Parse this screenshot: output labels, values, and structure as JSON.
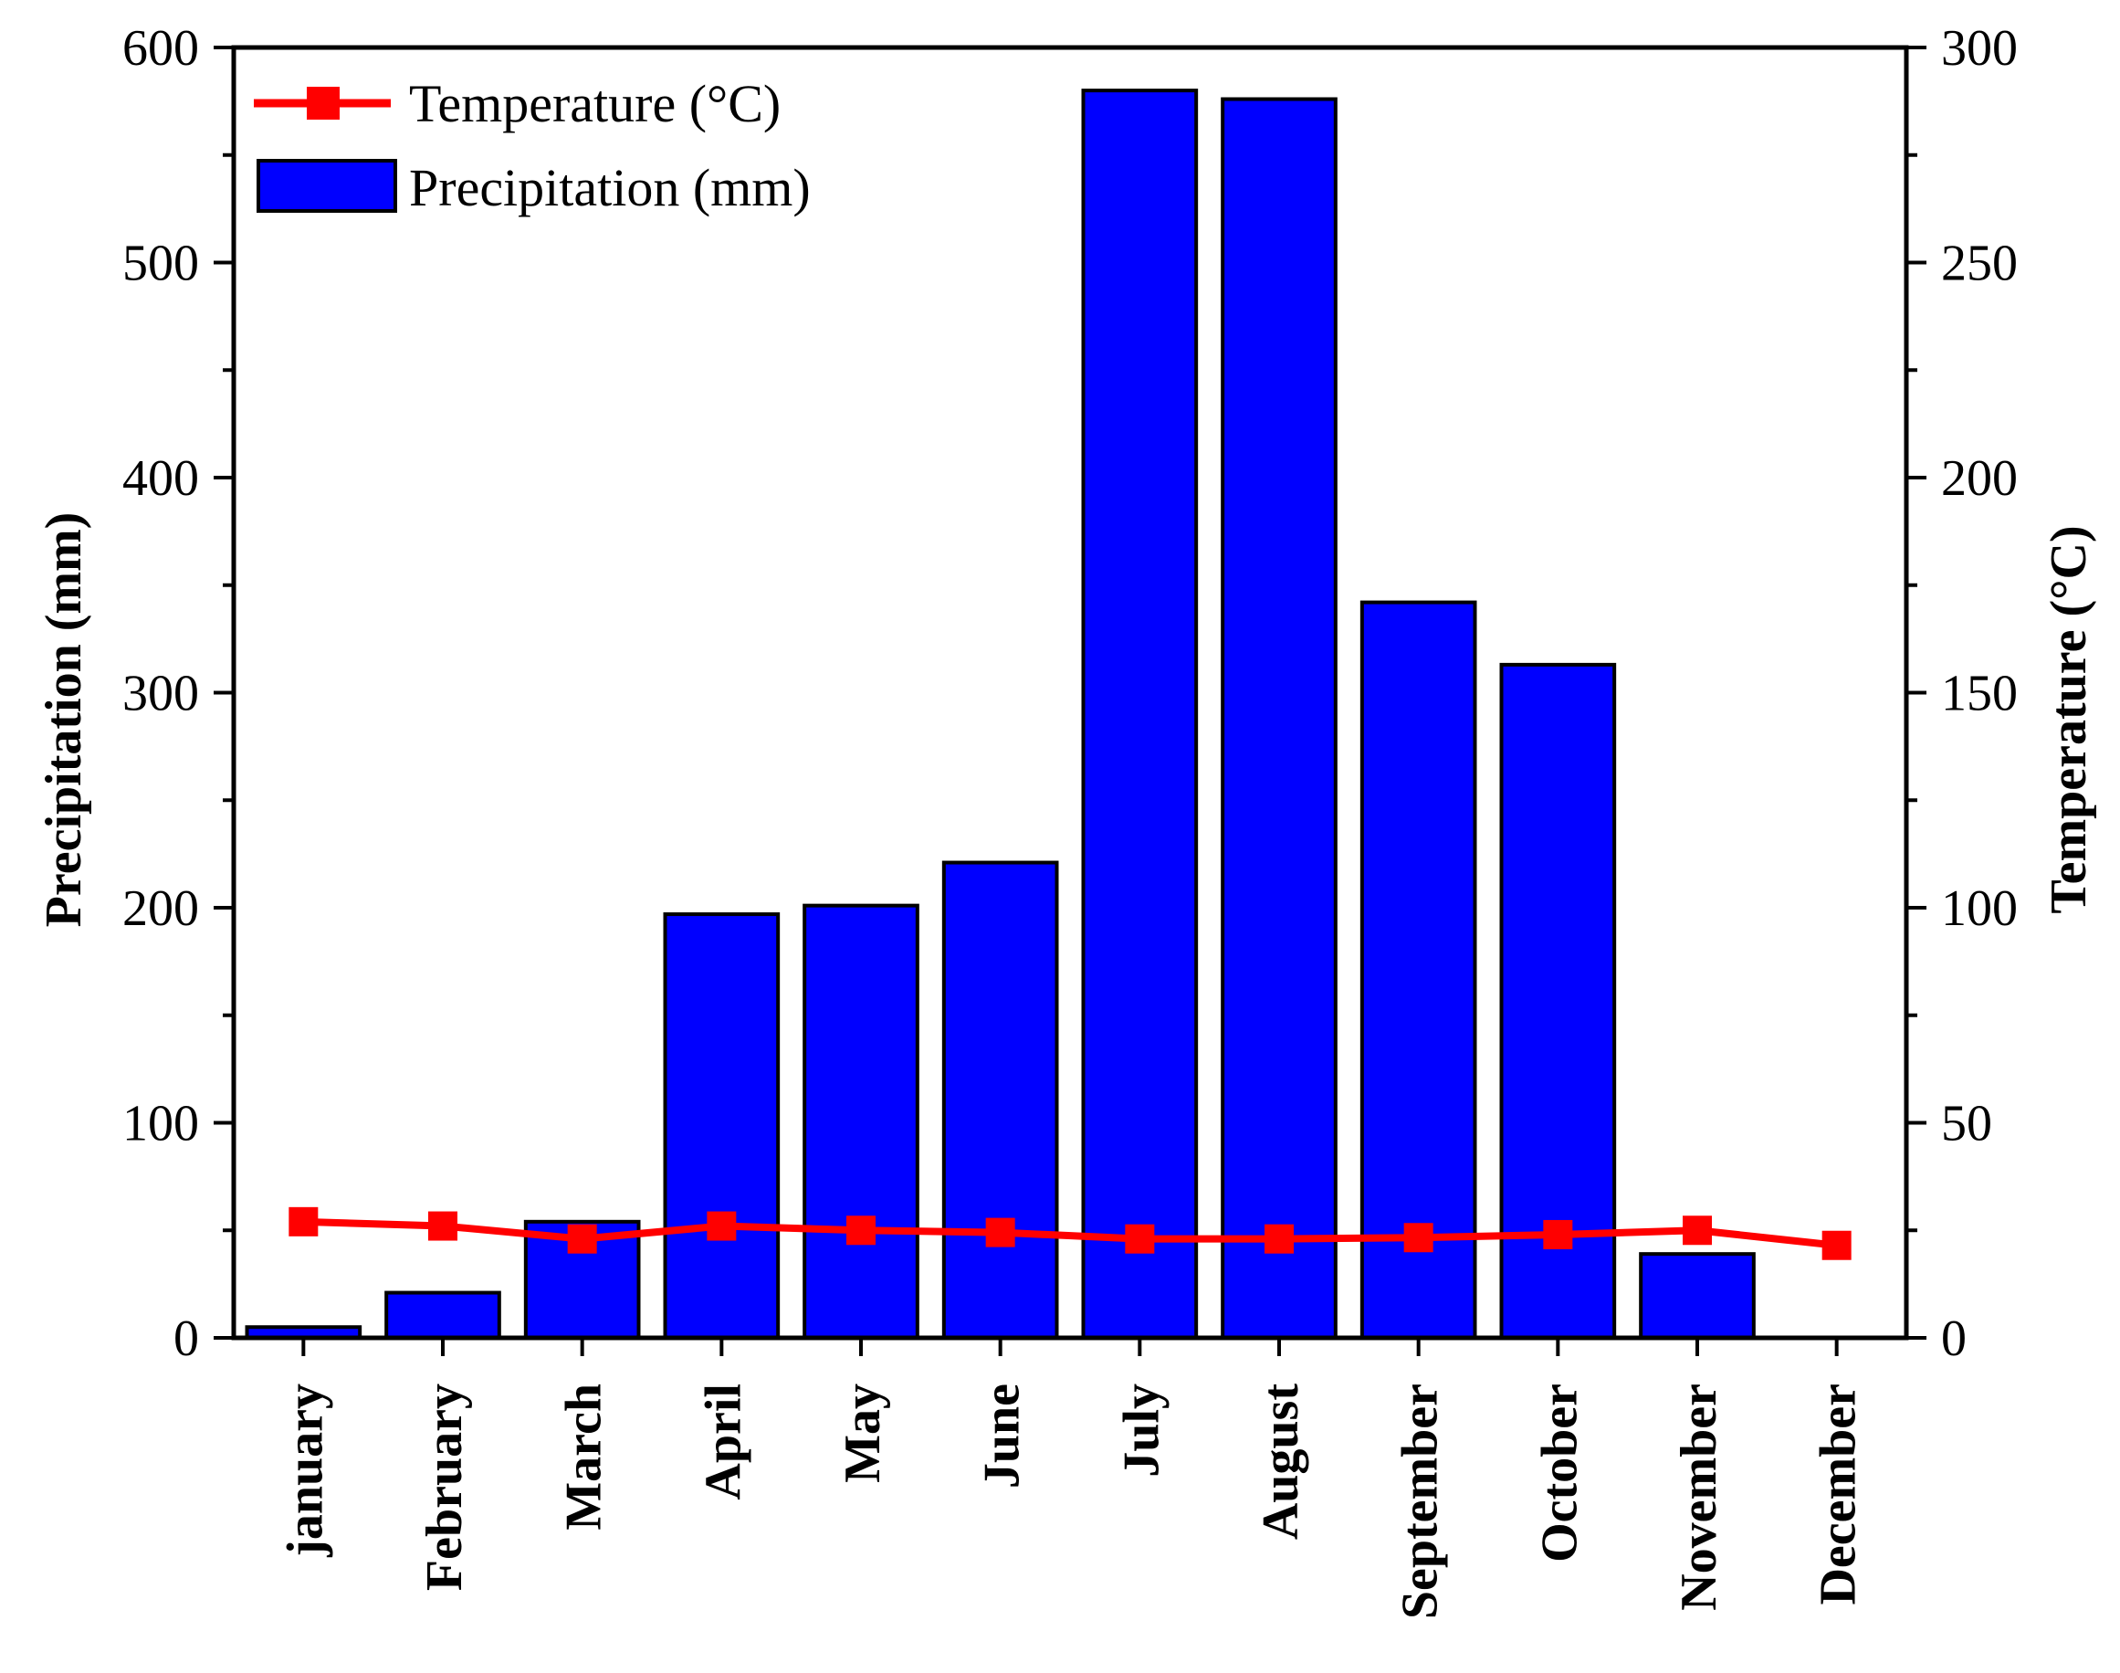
{
  "chart_data": {
    "type": "bar",
    "categories": [
      "january",
      "February",
      "March",
      "April",
      "May",
      "June",
      "July",
      "August",
      "September",
      "October",
      "November",
      "December"
    ],
    "series": [
      {
        "name": "Precipitation (mm)",
        "type": "bar",
        "axis": "left",
        "color": "#0000ff",
        "values": [
          5,
          21,
          54,
          197,
          201,
          221,
          580,
          576,
          342,
          313,
          39,
          0
        ]
      },
      {
        "name": "Temperature (°C)",
        "type": "line",
        "axis": "right",
        "color": "#ff0000",
        "values": [
          27,
          26,
          23,
          26,
          25,
          24.5,
          23,
          23,
          23.3,
          24,
          25,
          21.5
        ]
      }
    ],
    "ylabel": "Precipitation (mm)",
    "y2label": "Temperature (°C)",
    "ylim": [
      0,
      600
    ],
    "y2lim": [
      0,
      300
    ],
    "yticks": [
      "0",
      "100",
      "200",
      "300",
      "400",
      "500",
      "600"
    ],
    "y2ticks": [
      "0",
      "50",
      "100",
      "150",
      "200",
      "250",
      "300"
    ],
    "legend": {
      "position": "top-left",
      "entries": [
        "Temperature (°C)",
        "Precipitation (mm)"
      ]
    },
    "grid": false
  }
}
